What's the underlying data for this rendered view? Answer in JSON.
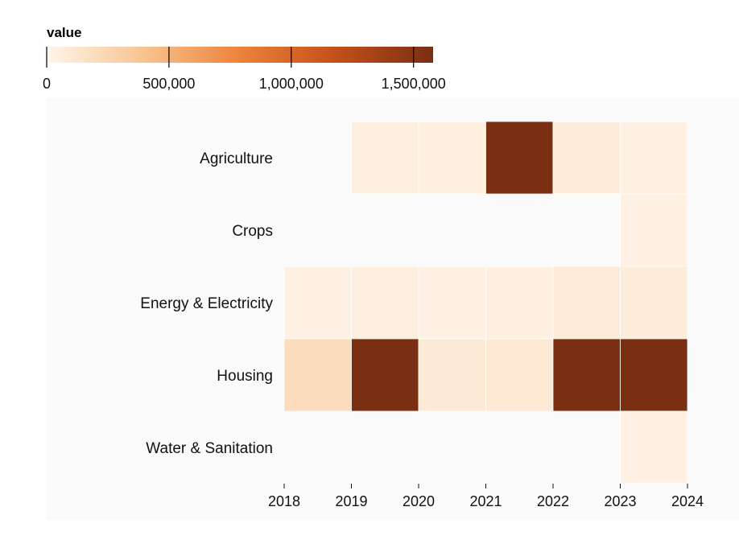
{
  "chart_data": {
    "type": "heatmap",
    "title": "",
    "xlabel": "",
    "ylabel": "",
    "legend": {
      "title": "value",
      "domain": [
        0,
        1580000
      ],
      "ticks": [
        0,
        500000,
        1000000,
        1500000
      ],
      "tick_labels": [
        "0",
        "500,000",
        "1,000,000",
        "1,500,000"
      ],
      "color_scheme": "oranges",
      "placement": "top-left"
    },
    "x_ticks": [
      "2018",
      "2019",
      "2020",
      "2021",
      "2022",
      "2023",
      "2024"
    ],
    "categories": [
      "Agriculture",
      "Crops",
      "Energy & Electricity",
      "Housing",
      "Water & Sanitation"
    ],
    "cells": [
      {
        "category": "Agriculture",
        "start": 2019,
        "end": 2020,
        "value": 60000
      },
      {
        "category": "Agriculture",
        "start": 2020,
        "end": 2021,
        "value": 50000
      },
      {
        "category": "Agriculture",
        "start": 2021,
        "end": 2022,
        "value": 1580000
      },
      {
        "category": "Agriculture",
        "start": 2022,
        "end": 2023,
        "value": 70000
      },
      {
        "category": "Agriculture",
        "start": 2023,
        "end": 2024,
        "value": 40000
      },
      {
        "category": "Crops",
        "start": 2023,
        "end": 2024,
        "value": 30000
      },
      {
        "category": "Energy & Electricity",
        "start": 2018,
        "end": 2019,
        "value": 35000
      },
      {
        "category": "Energy & Electricity",
        "start": 2019,
        "end": 2020,
        "value": 55000
      },
      {
        "category": "Energy & Electricity",
        "start": 2020,
        "end": 2021,
        "value": 30000
      },
      {
        "category": "Energy & Electricity",
        "start": 2021,
        "end": 2022,
        "value": 45000
      },
      {
        "category": "Energy & Electricity",
        "start": 2022,
        "end": 2023,
        "value": 85000
      },
      {
        "category": "Energy & Electricity",
        "start": 2023,
        "end": 2024,
        "value": 70000
      },
      {
        "category": "Housing",
        "start": 2018,
        "end": 2019,
        "value": 200000
      },
      {
        "category": "Housing",
        "start": 2019,
        "end": 2020,
        "value": 1580000
      },
      {
        "category": "Housing",
        "start": 2020,
        "end": 2021,
        "value": 90000
      },
      {
        "category": "Housing",
        "start": 2021,
        "end": 2022,
        "value": 100000
      },
      {
        "category": "Housing",
        "start": 2022,
        "end": 2023,
        "value": 1580000
      },
      {
        "category": "Housing",
        "start": 2023,
        "end": 2024,
        "value": 1580000
      },
      {
        "category": "Water & Sanitation",
        "start": 2023,
        "end": 2024,
        "value": 40000
      }
    ]
  }
}
